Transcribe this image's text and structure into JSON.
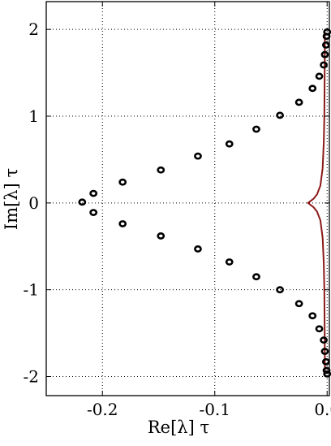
{
  "chart_data": {
    "type": "scatter",
    "xlabel": "Re[λ] τ",
    "ylabel": "Im[λ] τ",
    "xlim": [
      -0.25,
      0.002
    ],
    "ylim": [
      -2.22,
      2.32
    ],
    "grid": true,
    "x_ticks": [
      {
        "value": -0.2,
        "label": "-0.2"
      },
      {
        "value": -0.1,
        "label": "-0.1"
      },
      {
        "value": 0.0,
        "label": "0.0"
      }
    ],
    "y_ticks": [
      {
        "value": 2,
        "label": "2"
      },
      {
        "value": 1,
        "label": "1"
      },
      {
        "value": 0,
        "label": "0"
      },
      {
        "value": -1,
        "label": "-1"
      },
      {
        "value": -2,
        "label": "-2"
      }
    ],
    "series": [
      {
        "type": "scatter",
        "marker": "open-circle",
        "color": "#000000",
        "points": [
          {
            "x": -0.218,
            "y": 0.01
          },
          {
            "x": -0.208,
            "y": 0.11
          },
          {
            "x": -0.208,
            "y": -0.11
          },
          {
            "x": -0.182,
            "y": 0.24
          },
          {
            "x": -0.182,
            "y": -0.24
          },
          {
            "x": -0.148,
            "y": 0.38
          },
          {
            "x": -0.148,
            "y": -0.38
          },
          {
            "x": -0.115,
            "y": 0.54
          },
          {
            "x": -0.115,
            "y": -0.53
          },
          {
            "x": -0.087,
            "y": 0.68
          },
          {
            "x": -0.087,
            "y": -0.68
          },
          {
            "x": -0.063,
            "y": 0.85
          },
          {
            "x": -0.063,
            "y": -0.85
          },
          {
            "x": -0.042,
            "y": 1.01
          },
          {
            "x": -0.042,
            "y": -1.0
          },
          {
            "x": -0.025,
            "y": 1.16
          },
          {
            "x": -0.025,
            "y": -1.16
          },
          {
            "x": -0.013,
            "y": 1.32
          },
          {
            "x": -0.013,
            "y": -1.3
          },
          {
            "x": -0.007,
            "y": 1.46
          },
          {
            "x": -0.007,
            "y": -1.45
          },
          {
            "x": -0.003,
            "y": 1.59
          },
          {
            "x": -0.003,
            "y": -1.58
          },
          {
            "x": -0.002,
            "y": 1.71
          },
          {
            "x": -0.002,
            "y": -1.71
          },
          {
            "x": -0.001,
            "y": 1.82
          },
          {
            "x": -0.001,
            "y": -1.83
          },
          {
            "x": -0.0005,
            "y": 1.92
          },
          {
            "x": -0.0005,
            "y": -1.93
          },
          {
            "x": 0.0,
            "y": 1.97
          },
          {
            "x": 0.0,
            "y": -1.97
          }
        ]
      },
      {
        "type": "line",
        "color": "#8b1a1a",
        "points": [
          {
            "x": -0.002,
            "y": 1.97
          },
          {
            "x": -0.0022,
            "y": 1.5
          },
          {
            "x": -0.0025,
            "y": 1.0
          },
          {
            "x": -0.003,
            "y": 0.7
          },
          {
            "x": -0.004,
            "y": 0.4
          },
          {
            "x": -0.006,
            "y": 0.2
          },
          {
            "x": -0.009,
            "y": 0.1
          },
          {
            "x": -0.012,
            "y": 0.05
          },
          {
            "x": -0.015,
            "y": 0.02
          },
          {
            "x": -0.017,
            "y": 0.0
          },
          {
            "x": -0.015,
            "y": -0.02
          },
          {
            "x": -0.012,
            "y": -0.05
          },
          {
            "x": -0.009,
            "y": -0.1
          },
          {
            "x": -0.006,
            "y": -0.2
          },
          {
            "x": -0.004,
            "y": -0.4
          },
          {
            "x": -0.003,
            "y": -0.7
          },
          {
            "x": -0.0025,
            "y": -1.0
          },
          {
            "x": -0.0022,
            "y": -1.5
          },
          {
            "x": -0.002,
            "y": -1.97
          }
        ]
      }
    ]
  }
}
